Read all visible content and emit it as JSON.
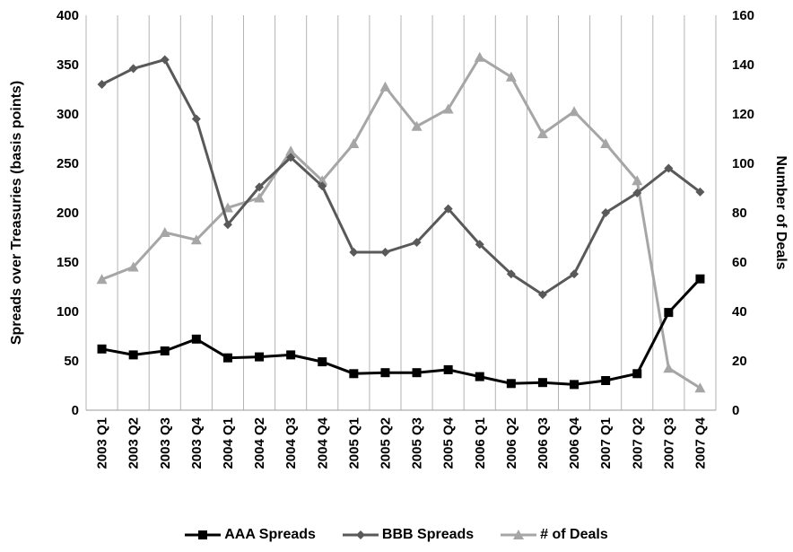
{
  "chart_data": {
    "type": "line",
    "title": "",
    "categories": [
      "2003 Q1",
      "2003 Q2",
      "2003 Q3",
      "2003 Q4",
      "2004 Q1",
      "2004 Q2",
      "2004 Q3",
      "2004 Q4",
      "2005 Q1",
      "2005 Q2",
      "2005 Q3",
      "2005 Q4",
      "2006 Q1",
      "2006 Q2",
      "2006 Q3",
      "2006 Q4",
      "2007 Q1",
      "2007 Q2",
      "2007 Q3",
      "2007 Q4"
    ],
    "ylabel_left": "Spreads over Treasuries (basis points)",
    "ylabel_right": "Number of Deals",
    "ylim_left": [
      0,
      400
    ],
    "ylim_right": [
      0,
      160
    ],
    "yticks_left": [
      0,
      50,
      100,
      150,
      200,
      250,
      300,
      350,
      400
    ],
    "yticks_right": [
      0,
      20,
      40,
      60,
      80,
      100,
      120,
      140,
      160
    ],
    "grid": "vertical",
    "legend_position": "bottom",
    "series": [
      {
        "name": "AAA Spreads",
        "axis": "left",
        "color": "#000000",
        "marker": "square",
        "values": [
          62,
          56,
          60,
          72,
          53,
          54,
          56,
          49,
          37,
          38,
          38,
          41,
          34,
          27,
          28,
          26,
          30,
          37,
          99,
          133
        ]
      },
      {
        "name": "BBB Spreads",
        "axis": "left",
        "color": "#595959",
        "marker": "diamond",
        "values": [
          330,
          346,
          355,
          295,
          188,
          226,
          256,
          227,
          160,
          160,
          170,
          204,
          168,
          138,
          117,
          138,
          200,
          220,
          245,
          221
        ]
      },
      {
        "name": "# of Deals",
        "axis": "right",
        "color": "#a6a6a6",
        "marker": "triangle",
        "values": [
          53,
          58,
          72,
          69,
          82,
          86,
          105,
          93,
          108,
          131,
          115,
          122,
          143,
          135,
          112,
          121,
          108,
          93,
          17,
          9
        ]
      }
    ]
  }
}
